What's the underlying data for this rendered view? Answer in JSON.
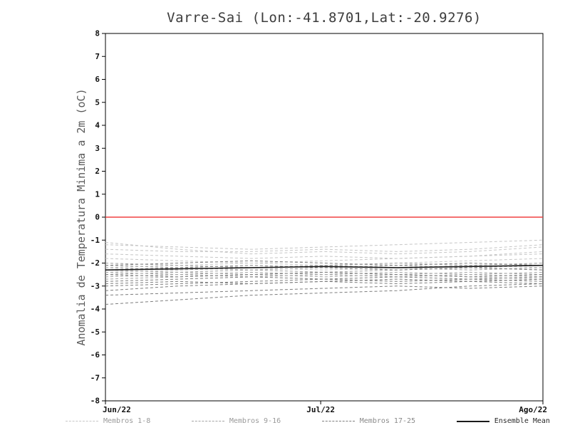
{
  "chart_data": {
    "type": "line",
    "title": "Varre-Sai (Lon:-41.8701,Lat:-20.9276)",
    "xlabel": "",
    "ylabel": "Anomalia de Temperatura Minima a 2m (oC)",
    "ylim": [
      -8,
      8
    ],
    "y_tick_step": 1,
    "y_ticks": [
      8,
      7,
      6,
      5,
      4,
      3,
      2,
      1,
      0,
      -1,
      -2,
      -3,
      -4,
      -5,
      -6,
      -7,
      -8
    ],
    "x_ticks": [
      {
        "label": "Jun/22",
        "pos": 0.0
      },
      {
        "label": "Jul/22",
        "pos": 0.492
      },
      {
        "label": "Ago/22",
        "pos": 1.0
      }
    ],
    "grid": false,
    "frame_color": "#000000",
    "zero_line": {
      "value": 0,
      "color": "#f04040"
    },
    "groups": [
      {
        "name": "Membros 1-8",
        "color": "#c6c6c6",
        "style": "dashed",
        "members": [
          [
            -1.2,
            -1.3,
            -1.4,
            -1.3,
            -1.2,
            -1.1,
            -1.0
          ],
          [
            -1.4,
            -1.5,
            -1.5,
            -1.4,
            -1.5,
            -1.4,
            -1.2
          ],
          [
            -1.1,
            -1.4,
            -1.6,
            -1.5,
            -1.6,
            -1.5,
            -1.3
          ],
          [
            -1.6,
            -1.7,
            -1.8,
            -1.7,
            -1.8,
            -1.7,
            -1.5
          ],
          [
            -1.8,
            -1.9,
            -2.0,
            -1.9,
            -1.8,
            -1.7,
            -1.6
          ],
          [
            -2.0,
            -2.1,
            -2.0,
            -2.1,
            -2.0,
            -1.9,
            -1.8
          ],
          [
            -2.2,
            -2.1,
            -2.2,
            -2.3,
            -2.2,
            -2.1,
            -2.0
          ],
          [
            -2.4,
            -2.3,
            -2.2,
            -2.1,
            -2.2,
            -2.1,
            -2.2
          ]
        ]
      },
      {
        "name": "Membros 9-16",
        "color": "#a4a4a4",
        "style": "dashed",
        "members": [
          [
            -2.1,
            -2.2,
            -2.3,
            -2.2,
            -2.1,
            -2.2,
            -2.1
          ],
          [
            -2.3,
            -2.4,
            -2.3,
            -2.4,
            -2.3,
            -2.2,
            -2.3
          ],
          [
            -2.5,
            -2.4,
            -2.5,
            -2.4,
            -2.5,
            -2.4,
            -2.5
          ],
          [
            -2.2,
            -2.3,
            -2.2,
            -2.1,
            -2.2,
            -2.3,
            -2.2
          ],
          [
            -2.6,
            -2.5,
            -2.4,
            -2.5,
            -2.4,
            -2.5,
            -2.6
          ],
          [
            -2.4,
            -2.5,
            -2.6,
            -2.5,
            -2.6,
            -2.5,
            -2.4
          ],
          [
            -2.0,
            -2.1,
            -2.2,
            -2.1,
            -2.0,
            -2.1,
            -2.0
          ],
          [
            -2.7,
            -2.6,
            -2.5,
            -2.6,
            -2.5,
            -2.6,
            -2.7
          ]
        ]
      },
      {
        "name": "Membros 17-25",
        "color": "#7d7d7d",
        "style": "dashed",
        "members": [
          [
            -2.8,
            -2.7,
            -2.6,
            -2.7,
            -2.6,
            -2.7,
            -2.8
          ],
          [
            -3.0,
            -2.9,
            -2.8,
            -2.7,
            -2.8,
            -2.7,
            -2.6
          ],
          [
            -3.2,
            -3.0,
            -2.9,
            -2.8,
            -2.9,
            -2.8,
            -2.7
          ],
          [
            -3.8,
            -3.6,
            -3.4,
            -3.3,
            -3.2,
            -3.0,
            -2.9
          ],
          [
            -2.3,
            -2.2,
            -2.1,
            -2.2,
            -2.3,
            -2.2,
            -2.3
          ],
          [
            -2.1,
            -2.0,
            -1.9,
            -2.0,
            -2.1,
            -2.0,
            -2.1
          ],
          [
            -2.5,
            -2.6,
            -2.5,
            -2.4,
            -2.5,
            -2.6,
            -2.5
          ],
          [
            -2.9,
            -2.8,
            -2.9,
            -2.8,
            -2.7,
            -2.8,
            -2.9
          ],
          [
            -3.4,
            -3.3,
            -3.2,
            -3.1,
            -3.0,
            -3.1,
            -3.0
          ]
        ]
      }
    ],
    "ensemble_mean": {
      "name": "Ensemble Mean",
      "color": "#1a1a1a",
      "style": "solid",
      "values": [
        -2.3,
        -2.25,
        -2.2,
        -2.15,
        -2.2,
        -2.15,
        -2.1
      ]
    }
  },
  "legend": {
    "entries": [
      {
        "label": "Membros 1-8",
        "color": "#c6c6c6",
        "style": "dashed",
        "text_color": "#9a9a9a"
      },
      {
        "label": "Membros 9-16",
        "color": "#a4a4a4",
        "style": "dashed",
        "text_color": "#9a9a9a"
      },
      {
        "label": "Membros 17-25",
        "color": "#7d7d7d",
        "style": "dashed",
        "text_color": "#8a8a8a"
      },
      {
        "label": "Ensemble Mean",
        "color": "#1a1a1a",
        "style": "solid",
        "text_color": "#2a2a2a"
      }
    ]
  }
}
